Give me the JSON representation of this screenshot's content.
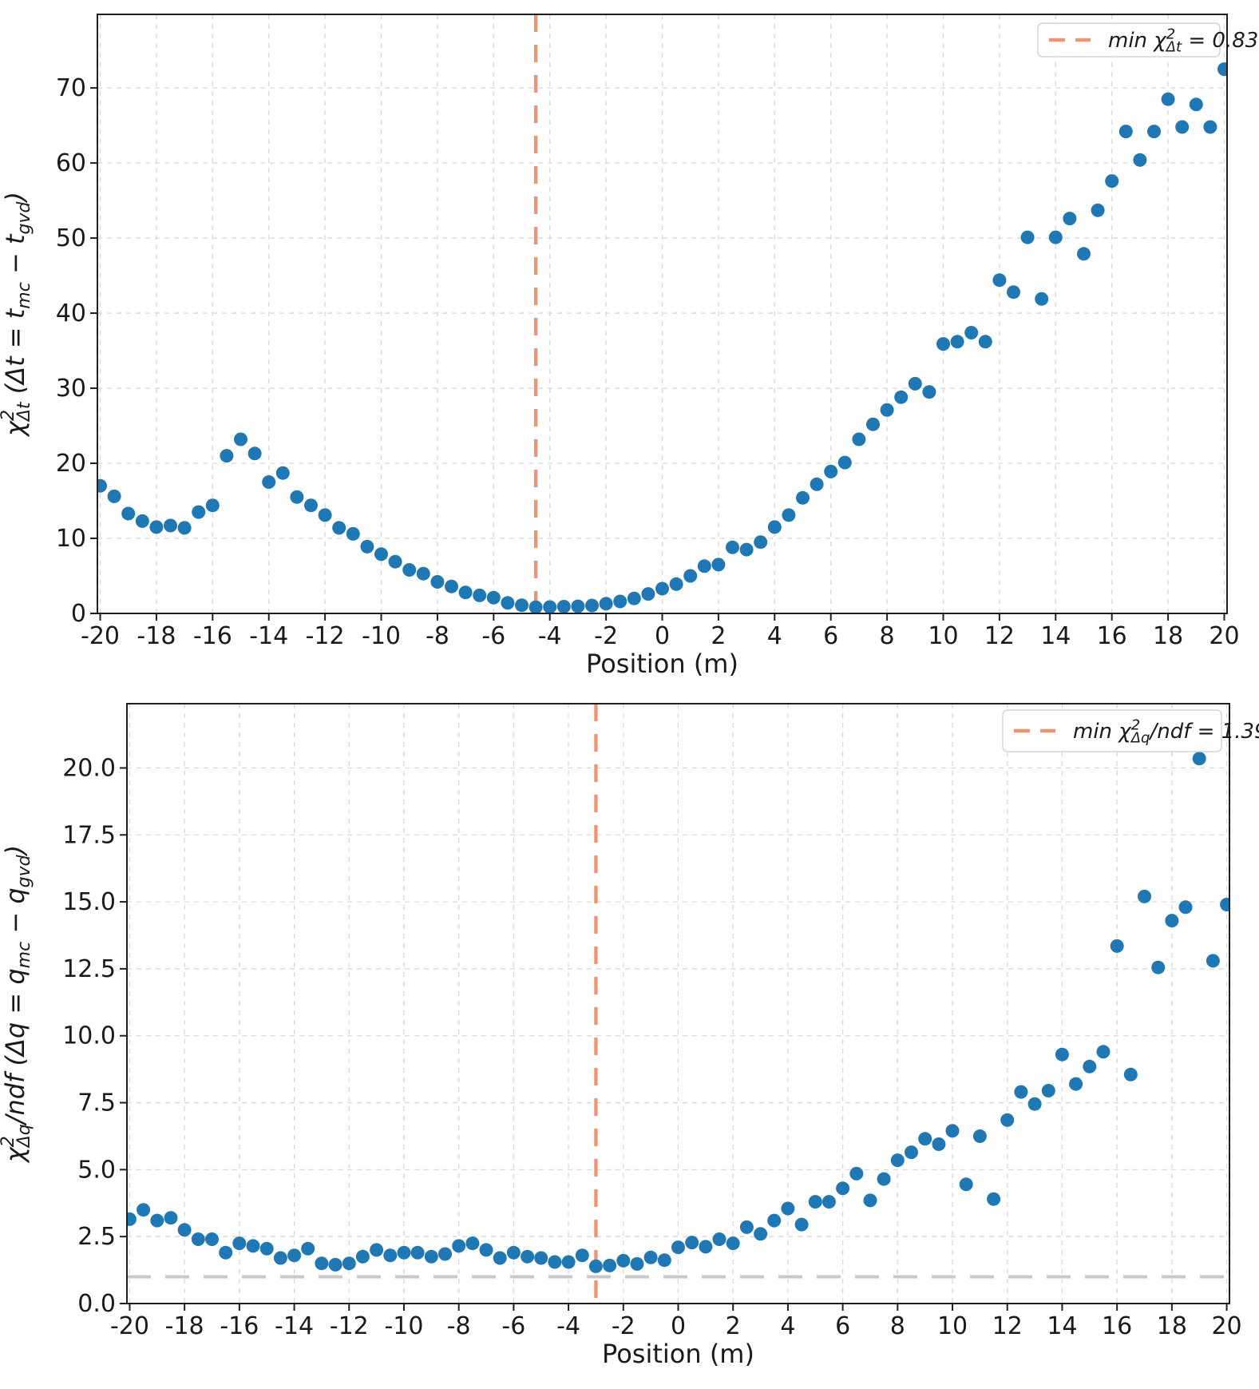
{
  "colors": {
    "dot": "#1f77b4",
    "min_line": "#ee9472",
    "unity_line": "#c9c9c9",
    "grid": "#d9d9d9",
    "spine": "#1f1f1f",
    "legend_border": "#d5d5d5"
  },
  "chart_data": [
    {
      "type": "scatter",
      "title": "",
      "xlabel": "Position (m)",
      "ylabel": "χ²Δt (Δt = tmc − tgvd)",
      "ylabel_parts": [
        {
          "t": "χ",
          "k": "n"
        },
        {
          "t": "2",
          "k": "sup"
        },
        {
          "t": "Δt",
          "k": "sub"
        },
        {
          "t": " (Δt = t",
          "k": "n"
        },
        {
          "t": "mc",
          "k": "sub"
        },
        {
          "t": " − t",
          "k": "n"
        },
        {
          "t": "gvd",
          "k": "sub"
        },
        {
          "t": ")",
          "k": "n"
        }
      ],
      "legend_label": "min χ²Δt = 0.83",
      "legend_parts": [
        {
          "t": "min χ",
          "k": "n"
        },
        {
          "t": "2",
          "k": "sup"
        },
        {
          "t": "Δt",
          "k": "sub"
        },
        {
          "t": " = 0.83",
          "k": "n"
        }
      ],
      "legend_position": "upper right",
      "grid": true,
      "xlim": [
        -20.1,
        20.1
      ],
      "ylim": [
        0,
        79.8
      ],
      "x_ticks": [
        -20,
        -18,
        -16,
        -14,
        -12,
        -10,
        -8,
        -6,
        -4,
        -2,
        0,
        2,
        4,
        6,
        8,
        10,
        12,
        14,
        16,
        18,
        20
      ],
      "x_tick_labels": [
        "-20",
        "-18",
        "-16",
        "-14",
        "-12",
        "-10",
        "-8",
        "-6",
        "-4",
        "-2",
        "0",
        "2",
        "4",
        "6",
        "8",
        "10",
        "12",
        "14",
        "16",
        "18",
        "20"
      ],
      "y_ticks": [
        0,
        10,
        20,
        30,
        40,
        50,
        60,
        70
      ],
      "y_tick_labels": [
        "0",
        "10",
        "20",
        "30",
        "40",
        "50",
        "60",
        "70"
      ],
      "vline_x": -4.5,
      "min_value": 0.83,
      "points": [
        [
          -20,
          17.0
        ],
        [
          -19.5,
          15.6
        ],
        [
          -19,
          13.3
        ],
        [
          -18.5,
          12.3
        ],
        [
          -18,
          11.5
        ],
        [
          -17.5,
          11.7
        ],
        [
          -17,
          11.4
        ],
        [
          -16.5,
          13.5
        ],
        [
          -16,
          14.4
        ],
        [
          -15.5,
          21.0
        ],
        [
          -15,
          23.2
        ],
        [
          -14.5,
          21.3
        ],
        [
          -14,
          17.5
        ],
        [
          -13.5,
          18.7
        ],
        [
          -13,
          15.5
        ],
        [
          -12.5,
          14.4
        ],
        [
          -12,
          13.1
        ],
        [
          -11.5,
          11.4
        ],
        [
          -11,
          10.6
        ],
        [
          -10.5,
          8.9
        ],
        [
          -10,
          7.9
        ],
        [
          -9.5,
          6.9
        ],
        [
          -9,
          5.8
        ],
        [
          -8.5,
          5.3
        ],
        [
          -8,
          4.2
        ],
        [
          -7.5,
          3.6
        ],
        [
          -7,
          2.8
        ],
        [
          -6.5,
          2.4
        ],
        [
          -6,
          2.1
        ],
        [
          -5.5,
          1.4
        ],
        [
          -5,
          1.1
        ],
        [
          -4.5,
          0.83
        ],
        [
          -4,
          0.85
        ],
        [
          -3.5,
          0.9
        ],
        [
          -3,
          0.95
        ],
        [
          -2.5,
          1.05
        ],
        [
          -2,
          1.3
        ],
        [
          -1.5,
          1.6
        ],
        [
          -1,
          2.0
        ],
        [
          -0.5,
          2.6
        ],
        [
          0,
          3.3
        ],
        [
          0.5,
          3.9
        ],
        [
          1,
          5.0
        ],
        [
          1.5,
          6.3
        ],
        [
          2,
          6.5
        ],
        [
          2.5,
          8.8
        ],
        [
          3,
          8.5
        ],
        [
          3.5,
          9.5
        ],
        [
          4,
          11.5
        ],
        [
          4.5,
          13.1
        ],
        [
          5,
          15.4
        ],
        [
          5.5,
          17.2
        ],
        [
          6,
          18.9
        ],
        [
          6.5,
          20.1
        ],
        [
          7,
          23.2
        ],
        [
          7.5,
          25.2
        ],
        [
          8,
          27.1
        ],
        [
          8.5,
          28.8
        ],
        [
          9,
          30.6
        ],
        [
          9.5,
          29.5
        ],
        [
          10,
          35.9
        ],
        [
          10.5,
          36.2
        ],
        [
          11,
          37.4
        ],
        [
          11.5,
          36.2
        ],
        [
          12,
          44.4
        ],
        [
          12.5,
          42.8
        ],
        [
          13,
          50.1
        ],
        [
          13.5,
          41.9
        ],
        [
          14,
          50.1
        ],
        [
          14.5,
          52.6
        ],
        [
          15,
          47.9
        ],
        [
          15.5,
          53.7
        ],
        [
          16,
          57.6
        ],
        [
          16.5,
          64.2
        ],
        [
          17,
          60.4
        ],
        [
          17.5,
          64.2
        ],
        [
          18,
          68.5
        ],
        [
          18.5,
          64.8
        ],
        [
          19,
          67.8
        ],
        [
          19.5,
          64.8
        ],
        [
          20,
          72.5
        ]
      ]
    },
    {
      "type": "scatter",
      "title": "",
      "xlabel": "Position (m)",
      "ylabel": "χ²Δq/ndf (Δq = qmc − qgvd)",
      "ylabel_parts": [
        {
          "t": "χ",
          "k": "n"
        },
        {
          "t": "2",
          "k": "sup"
        },
        {
          "t": "Δq",
          "k": "sub"
        },
        {
          "t": "/ndf (Δq = q",
          "k": "n"
        },
        {
          "t": "mc",
          "k": "sub"
        },
        {
          "t": " − q",
          "k": "n"
        },
        {
          "t": "gvd",
          "k": "sub"
        },
        {
          "t": ")",
          "k": "n"
        }
      ],
      "legend_label": "min χ²Δq/ndf = 1.39",
      "legend_parts": [
        {
          "t": "min χ",
          "k": "n"
        },
        {
          "t": "2",
          "k": "sup"
        },
        {
          "t": "Δq",
          "k": "sub"
        },
        {
          "t": "/ndf = 1.39",
          "k": "n"
        }
      ],
      "legend_position": "upper right",
      "grid": true,
      "xlim": [
        -20.1,
        20.1
      ],
      "ylim": [
        0,
        22.4
      ],
      "x_ticks": [
        -20,
        -18,
        -16,
        -14,
        -12,
        -10,
        -8,
        -6,
        -4,
        -2,
        0,
        2,
        4,
        6,
        8,
        10,
        12,
        14,
        16,
        18,
        20
      ],
      "x_tick_labels": [
        "-20",
        "-18",
        "-16",
        "-14",
        "-12",
        "-10",
        "-8",
        "-6",
        "-4",
        "-2",
        "0",
        "2",
        "4",
        "6",
        "8",
        "10",
        "12",
        "14",
        "16",
        "18",
        "20"
      ],
      "y_ticks": [
        0,
        2.5,
        5,
        7.5,
        10,
        12.5,
        15,
        17.5,
        20
      ],
      "y_tick_labels": [
        "0.0",
        "2.5",
        "5.0",
        "7.5",
        "10.0",
        "12.5",
        "15.0",
        "17.5",
        "20.0"
      ],
      "vline_x": -3.0,
      "min_value": 1.39,
      "hline_y": 1.0,
      "points": [
        [
          -20,
          3.15
        ],
        [
          -19.5,
          3.5
        ],
        [
          -19,
          3.1
        ],
        [
          -18.5,
          3.2
        ],
        [
          -18,
          2.75
        ],
        [
          -17.5,
          2.4
        ],
        [
          -17,
          2.4
        ],
        [
          -16.5,
          1.9
        ],
        [
          -16,
          2.25
        ],
        [
          -15.5,
          2.15
        ],
        [
          -15,
          2.05
        ],
        [
          -14.5,
          1.7
        ],
        [
          -14,
          1.8
        ],
        [
          -13.5,
          2.05
        ],
        [
          -13,
          1.5
        ],
        [
          -12.5,
          1.45
        ],
        [
          -12,
          1.5
        ],
        [
          -11.5,
          1.75
        ],
        [
          -11,
          2.0
        ],
        [
          -10.5,
          1.8
        ],
        [
          -10,
          1.9
        ],
        [
          -9.5,
          1.9
        ],
        [
          -9,
          1.75
        ],
        [
          -8.5,
          1.85
        ],
        [
          -8,
          2.15
        ],
        [
          -7.5,
          2.25
        ],
        [
          -7,
          2.0
        ],
        [
          -6.5,
          1.7
        ],
        [
          -6,
          1.9
        ],
        [
          -5.5,
          1.75
        ],
        [
          -5,
          1.7
        ],
        [
          -4.5,
          1.55
        ],
        [
          -4,
          1.55
        ],
        [
          -3.5,
          1.8
        ],
        [
          -3,
          1.39
        ],
        [
          -2.5,
          1.42
        ],
        [
          -2,
          1.6
        ],
        [
          -1.5,
          1.48
        ],
        [
          -1,
          1.72
        ],
        [
          -0.5,
          1.62
        ],
        [
          0,
          2.1
        ],
        [
          0.5,
          2.28
        ],
        [
          1,
          2.12
        ],
        [
          1.5,
          2.4
        ],
        [
          2,
          2.25
        ],
        [
          2.5,
          2.85
        ],
        [
          3,
          2.6
        ],
        [
          3.5,
          3.1
        ],
        [
          4,
          3.55
        ],
        [
          4.5,
          2.95
        ],
        [
          5,
          3.8
        ],
        [
          5.5,
          3.8
        ],
        [
          6,
          4.3
        ],
        [
          6.5,
          4.85
        ],
        [
          7,
          3.85
        ],
        [
          7.5,
          4.65
        ],
        [
          8,
          5.35
        ],
        [
          8.5,
          5.65
        ],
        [
          9,
          6.15
        ],
        [
          9.5,
          5.95
        ],
        [
          10,
          6.45
        ],
        [
          10.5,
          4.45
        ],
        [
          11,
          6.25
        ],
        [
          11.5,
          3.9
        ],
        [
          12,
          6.85
        ],
        [
          12.5,
          7.9
        ],
        [
          13,
          7.45
        ],
        [
          13.5,
          7.95
        ],
        [
          14,
          9.3
        ],
        [
          14.5,
          8.2
        ],
        [
          15,
          8.85
        ],
        [
          15.5,
          9.4
        ],
        [
          16,
          13.35
        ],
        [
          16.5,
          8.55
        ],
        [
          17,
          15.2
        ],
        [
          17.5,
          12.55
        ],
        [
          18,
          14.3
        ],
        [
          18.5,
          14.8
        ],
        [
          19,
          20.35
        ],
        [
          19.5,
          12.8
        ],
        [
          20,
          14.9
        ]
      ]
    }
  ]
}
